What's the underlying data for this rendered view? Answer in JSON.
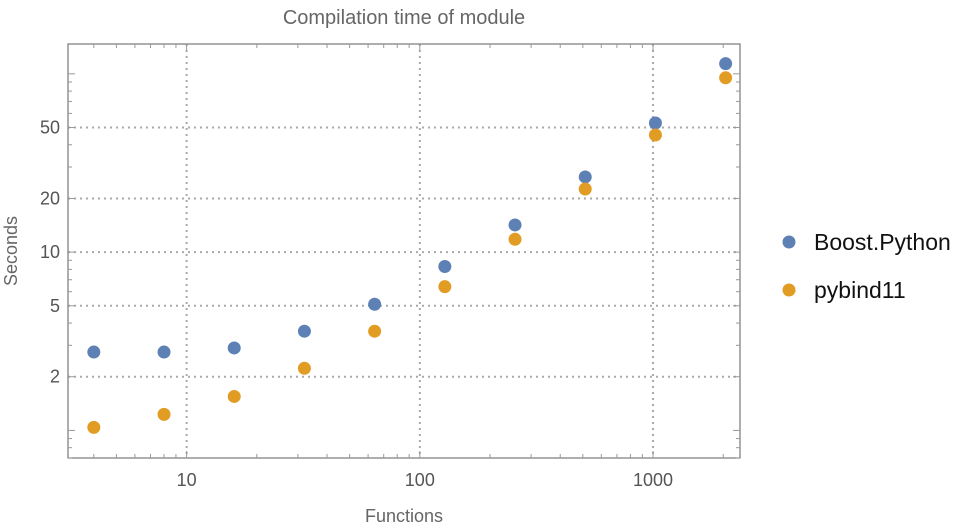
{
  "chart_data": {
    "type": "scatter",
    "title": "Compilation time of module",
    "xlabel": "Functions",
    "ylabel": "Seconds",
    "xscale": "log",
    "yscale": "log",
    "xlim": [
      3.1,
      2360
    ],
    "ylim": [
      0.7,
      147
    ],
    "grid": true,
    "legend_position": "right",
    "x_ticks": [
      10,
      100,
      1000
    ],
    "x_tick_labels": [
      "10",
      "100",
      "1000"
    ],
    "y_ticks": [
      2,
      5,
      10,
      20,
      50
    ],
    "y_tick_labels": [
      "2",
      "5",
      "10",
      "20",
      "50"
    ],
    "x": [
      4,
      8,
      16,
      32,
      64,
      128,
      256,
      512,
      1024,
      2048
    ],
    "series": [
      {
        "name": "Boost.Python",
        "color": "#5E81B5",
        "values": [
          2.75,
          2.75,
          2.9,
          3.6,
          5.1,
          8.3,
          14.2,
          26.4,
          53,
          114
        ]
      },
      {
        "name": "pybind11",
        "color": "#E19C24",
        "values": [
          1.04,
          1.23,
          1.55,
          2.23,
          3.6,
          6.4,
          11.8,
          22.6,
          45.4,
          95
        ]
      }
    ]
  }
}
